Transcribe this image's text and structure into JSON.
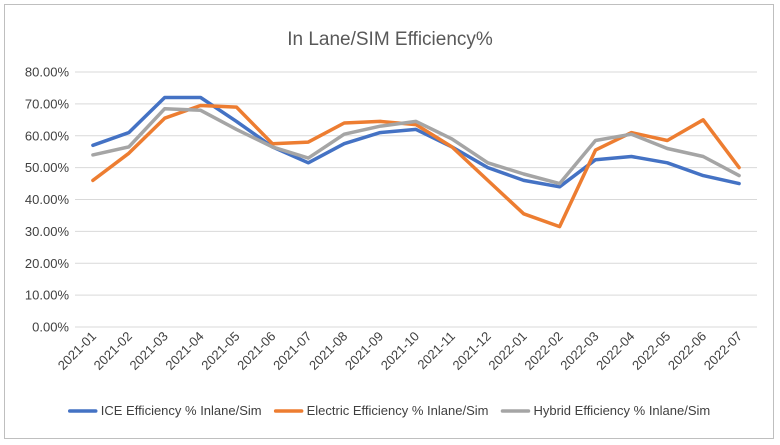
{
  "chart_data": {
    "type": "line",
    "title": "In Lane/SIM Efficiency%",
    "xlabel": "",
    "ylabel": "",
    "ylim": [
      0,
      0.8
    ],
    "y_tick_labels": [
      "0.00%",
      "10.00%",
      "20.00%",
      "30.00%",
      "40.00%",
      "50.00%",
      "60.00%",
      "70.00%",
      "80.00%"
    ],
    "y_ticks": [
      0,
      0.1,
      0.2,
      0.3,
      0.4,
      0.5,
      0.6,
      0.7,
      0.8
    ],
    "grid": "horizontal",
    "legend_position": "bottom",
    "categories": [
      "2021-01",
      "2021-02",
      "2021-03",
      "2021-04",
      "2021-05",
      "2021-06",
      "2021-07",
      "2021-08",
      "2021-09",
      "2021-10",
      "2021-11",
      "2021-12",
      "2022-01",
      "2022-02",
      "2022-03",
      "2022-04",
      "2022-05",
      "2022-06",
      "2022-07"
    ],
    "series": [
      {
        "name": "ICE Efficiency % Inlane/Sim",
        "color": "#4472c4",
        "values": [
          0.57,
          0.61,
          0.72,
          0.72,
          0.645,
          0.565,
          0.515,
          0.575,
          0.61,
          0.62,
          0.565,
          0.5,
          0.46,
          0.44,
          0.525,
          0.535,
          0.515,
          0.475,
          0.45
        ]
      },
      {
        "name": "Electric Efficiency % Inlane/Sim",
        "color": "#ed7d31",
        "values": [
          0.46,
          0.545,
          0.655,
          0.695,
          0.69,
          0.575,
          0.58,
          0.64,
          0.645,
          0.635,
          0.565,
          0.46,
          0.355,
          0.315,
          0.555,
          0.61,
          0.585,
          0.65,
          0.5
        ]
      },
      {
        "name": "Hybrid Efficiency % Inlane/Sim",
        "color": "#a5a5a5",
        "values": [
          0.54,
          0.565,
          0.685,
          0.68,
          0.62,
          0.565,
          0.53,
          0.605,
          0.63,
          0.645,
          0.59,
          0.515,
          0.48,
          0.45,
          0.585,
          0.605,
          0.56,
          0.535,
          0.475
        ]
      }
    ]
  }
}
